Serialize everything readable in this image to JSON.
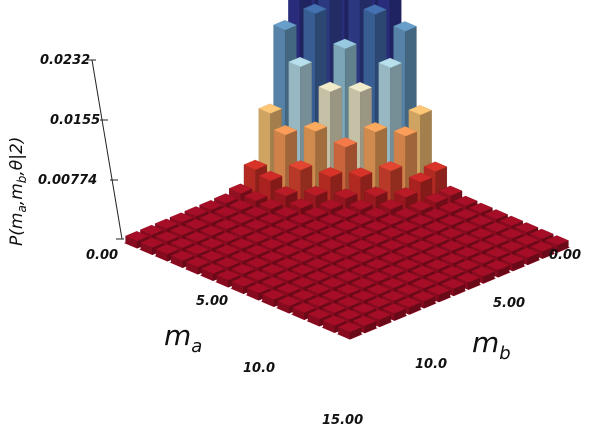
{
  "chart_data": {
    "type": "bar3d",
    "z_label": "P(m_a, m_b, θ|2)",
    "z_label_parts": {
      "main": "P(m",
      "sub_a": "a",
      "comma1": ",m",
      "sub_b": "b",
      "rest": ",θ|2)"
    },
    "x_label": {
      "main": "m",
      "sub": "a"
    },
    "y_label": {
      "main": "m",
      "sub": "b"
    },
    "z_ticks": [
      "0.00",
      "0.00774",
      "0.0155",
      "0.0232"
    ],
    "x_ticks": [
      "5.00",
      "10.0",
      "15.00"
    ],
    "y_ticks": [
      "0.00",
      "5.00",
      "10.0"
    ],
    "zlim": [
      0,
      0.0232
    ],
    "grid_size": 15,
    "colormap": [
      "#a50e26",
      "#d73027",
      "#f46d43",
      "#fdae61",
      "#fee090",
      "#e6f3f7",
      "#abd9e9",
      "#74add1",
      "#4575b4",
      "#313695"
    ],
    "peaks": [
      {
        "ma": 3,
        "mb": 0,
        "height": 0.0232
      },
      {
        "ma": 0,
        "mb": 3,
        "height": 0.0232
      },
      {
        "ma": 0,
        "mb": 0,
        "height": 0.0155
      }
    ]
  }
}
